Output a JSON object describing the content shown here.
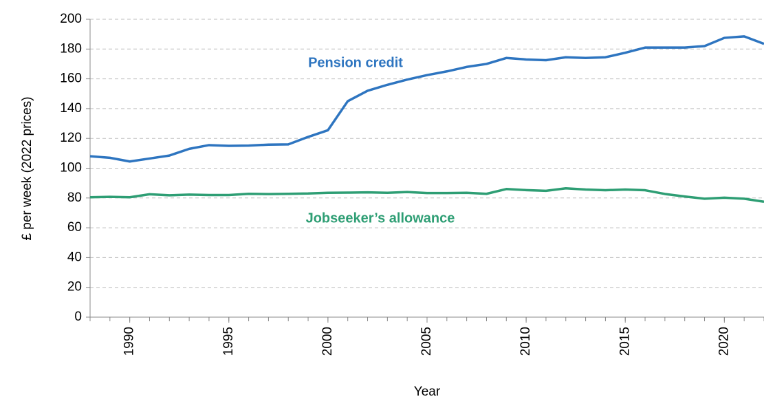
{
  "chart_data": {
    "type": "line",
    "x_label": "Year",
    "y_label": "£ per week (2022 prices)",
    "x": [
      1988,
      1989,
      1990,
      1991,
      1992,
      1993,
      1994,
      1995,
      1996,
      1997,
      1998,
      1999,
      2000,
      2001,
      2002,
      2003,
      2004,
      2005,
      2006,
      2007,
      2008,
      2009,
      2010,
      2011,
      2012,
      2013,
      2014,
      2015,
      2016,
      2017,
      2018,
      2019,
      2020,
      2021,
      2022
    ],
    "series": [
      {
        "name": "Pension credit",
        "color": "#2e75c0",
        "values": [
          108,
          107,
          104.5,
          106.5,
          108.5,
          113,
          115.5,
          115,
          115.2,
          115.8,
          116,
          121,
          125.5,
          145,
          152,
          156,
          159.5,
          162.5,
          165,
          168,
          170,
          174,
          173,
          172.5,
          174.5,
          174,
          174.5,
          177.5,
          181,
          181,
          181,
          182,
          187.5,
          188.5,
          183.5
        ]
      },
      {
        "name": "Jobseeker’s allowance",
        "color": "#2e9e74",
        "values": [
          80.5,
          80.8,
          80.5,
          82.5,
          81.8,
          82.3,
          82,
          82,
          82.8,
          82.6,
          82.8,
          83,
          83.5,
          83.6,
          83.8,
          83.5,
          84,
          83.3,
          83.3,
          83.5,
          82.8,
          86,
          85.3,
          84.8,
          86.5,
          85.7,
          85.2,
          85.7,
          85.2,
          82.7,
          81,
          79.5,
          80.2,
          79.5,
          77.5
        ]
      }
    ],
    "xlim": [
      1988,
      2022
    ],
    "ylim": [
      0,
      200
    ],
    "xticks": [
      1990,
      1995,
      2000,
      2005,
      2010,
      2015,
      2020
    ],
    "yticks": [
      0,
      20,
      40,
      60,
      80,
      100,
      120,
      140,
      160,
      180,
      200
    ],
    "grid": true
  }
}
